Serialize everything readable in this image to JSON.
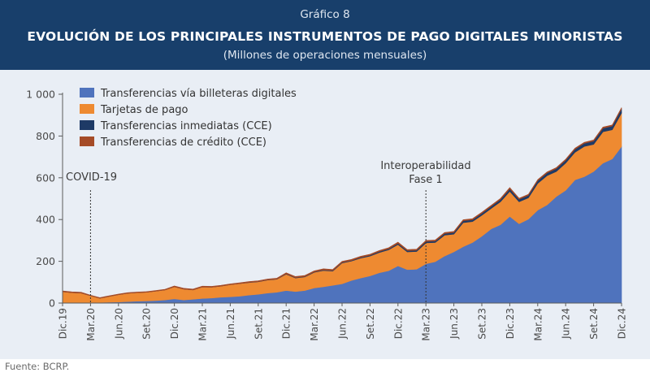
{
  "header": {
    "kicker": "Gráfico 8",
    "title": "EVOLUCIÓN DE LOS PRINCIPALES INSTRUMENTOS DE PAGO DIGITALES MINORISTAS",
    "subtitle": "(Millones de operaciones mensuales)"
  },
  "footer": {
    "source": "Fuente: BCRP."
  },
  "colors": {
    "header_bg": "#183f6b",
    "plot_bg": "#e9eef5",
    "billeteras": "#4f73bd",
    "tarjetas": "#ee8a31",
    "inmediatas": "#1e3a66",
    "credito": "#a54b27"
  },
  "chart_data": {
    "type": "area",
    "stacked": true,
    "title": "EVOLUCIÓN DE LOS PRINCIPALES INSTRUMENTOS DE PAGO DIGITALES MINORISTAS",
    "subtitle": "(Millones de operaciones mensuales)",
    "xlabel": "",
    "ylabel": "",
    "ylim": [
      0,
      1000
    ],
    "yticks": [
      0,
      200,
      400,
      600,
      800,
      1000
    ],
    "ytick_labels": [
      "0",
      "200",
      "400",
      "600",
      "800",
      "1 000"
    ],
    "grid": false,
    "legend_position": "top-left",
    "x": [
      "Dic.19",
      "Ene.20",
      "Feb.20",
      "Mar.20",
      "Abr.20",
      "May.20",
      "Jun.20",
      "Jul.20",
      "Ago.20",
      "Set.20",
      "Oct.20",
      "Nov.20",
      "Dic.20",
      "Ene.21",
      "Feb.21",
      "Mar.21",
      "Abr.21",
      "May.21",
      "Jun.21",
      "Jul.21",
      "Ago.21",
      "Set.21",
      "Oct.21",
      "Nov.21",
      "Dic.21",
      "Ene.22",
      "Feb.22",
      "Mar.22",
      "Abr.22",
      "May.22",
      "Jun.22",
      "Jul.22",
      "Ago.22",
      "Set.22",
      "Oct.22",
      "Nov.22",
      "Dic.22",
      "Ene.23",
      "Feb.23",
      "Mar.23",
      "Abr.23",
      "May.23",
      "Jun.23",
      "Jul.23",
      "Ago.23",
      "Set.23",
      "Oct.23",
      "Nov.23",
      "Dic.23",
      "Ene.24",
      "Feb.24",
      "Mar.24",
      "Abr.24",
      "May.24",
      "Jun.24",
      "Jul.24",
      "Ago.24",
      "Set.24",
      "Oct.24",
      "Nov.24",
      "Dic.24"
    ],
    "x_tick_labels": [
      "Dic.19",
      "Mar.20",
      "Jun.20",
      "Set.20",
      "Dic.20",
      "Mar.21",
      "Jun.21",
      "Set.21",
      "Dic.21",
      "Mar.22",
      "Jun.22",
      "Set.22",
      "Dic.22",
      "Mar.23",
      "Jun.23",
      "Set.23",
      "Dic.23",
      "Mar.24",
      "Jun.24",
      "Set.24",
      "Dic.24"
    ],
    "series": [
      {
        "name": "Transferencias vía billeteras digitales",
        "values": [
          2,
          2,
          2,
          2,
          3,
          4,
          5,
          7,
          9,
          10,
          12,
          15,
          20,
          15,
          18,
          22,
          24,
          28,
          30,
          33,
          38,
          42,
          48,
          52,
          60,
          55,
          60,
          72,
          78,
          85,
          92,
          108,
          120,
          130,
          145,
          155,
          178,
          160,
          162,
          188,
          198,
          225,
          245,
          270,
          290,
          320,
          355,
          375,
          415,
          380,
          402,
          445,
          470,
          510,
          540,
          590,
          605,
          630,
          670,
          690,
          750
        ]
      },
      {
        "name": "Tarjetas de pago",
        "values": [
          52,
          48,
          46,
          33,
          20,
          28,
          35,
          40,
          41,
          42,
          45,
          48,
          58,
          52,
          45,
          55,
          52,
          53,
          58,
          60,
          60,
          60,
          62,
          62,
          78,
          65,
          65,
          75,
          78,
          68,
          100,
          93,
          95,
          95,
          97,
          100,
          102,
          85,
          85,
          100,
          92,
          100,
          85,
          115,
          100,
          100,
          98,
          110,
          120,
          105,
          102,
          128,
          140,
          120,
          130,
          132,
          145,
          130,
          150,
          140,
          160
        ]
      },
      {
        "name": "Transferencias inmediatas (CCE)",
        "values": [
          0,
          0,
          0,
          0,
          0,
          0,
          0,
          0,
          0,
          0,
          0,
          0,
          0,
          0,
          0,
          0,
          0,
          0,
          0,
          0,
          1,
          1,
          1,
          1,
          2,
          2,
          2,
          2,
          3,
          3,
          3,
          3,
          4,
          4,
          5,
          5,
          6,
          6,
          6,
          7,
          7,
          8,
          8,
          9,
          9,
          10,
          10,
          11,
          12,
          12,
          12,
          13,
          13,
          14,
          14,
          15,
          15,
          16,
          17,
          18,
          20
        ]
      },
      {
        "name": "Transferencias de crédito (CCE)",
        "values": [
          4,
          4,
          4,
          3,
          3,
          3,
          3,
          3,
          3,
          3,
          3,
          3,
          4,
          4,
          4,
          4,
          4,
          4,
          4,
          4,
          4,
          4,
          4,
          4,
          5,
          5,
          5,
          5,
          5,
          5,
          5,
          5,
          5,
          5,
          5,
          5,
          6,
          5,
          5,
          5,
          5,
          5,
          5,
          5,
          5,
          5,
          5,
          5,
          6,
          5,
          5,
          5,
          5,
          5,
          5,
          5,
          5,
          5,
          6,
          5,
          6
        ]
      }
    ],
    "annotations": [
      {
        "label": "COVID-19",
        "x": "Mar.20"
      },
      {
        "label": "Interoperabilidad Fase 1",
        "lines": [
          "Interoperabilidad",
          "Fase 1"
        ],
        "x": "Mar.23"
      }
    ]
  }
}
